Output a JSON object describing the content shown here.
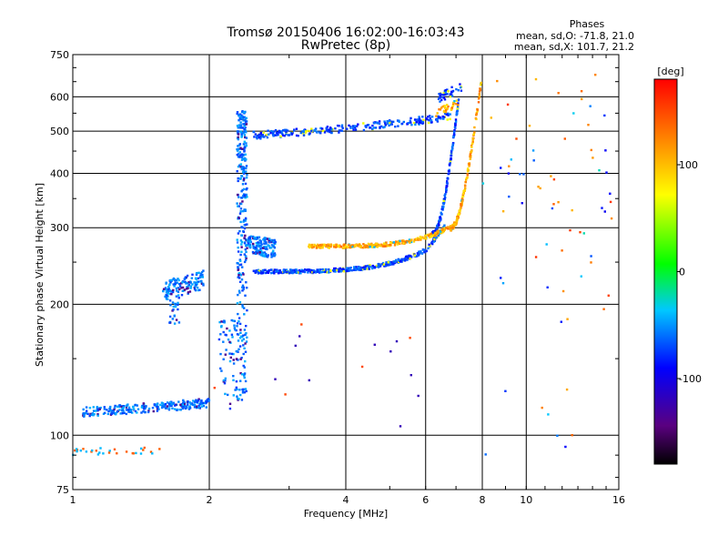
{
  "chart_data": {
    "type": "scatter",
    "title": "Tromsø 20150406 16:02:00-16:03:43",
    "subtitle": "RwPretec (8p)",
    "xlabel": "Frequency [MHz]",
    "ylabel": "Stationary phase Virtual Height [km]",
    "xscale": "log",
    "yscale": "log",
    "xlim": [
      1,
      16
    ],
    "ylim": [
      75,
      750
    ],
    "x_ticks": [
      "1",
      "2",
      "4",
      "6",
      "8",
      "10",
      "16"
    ],
    "y_ticks": [
      "75",
      "100",
      "200",
      "300",
      "400",
      "500",
      "600",
      "750"
    ],
    "grid": true,
    "info": {
      "title": "Phases",
      "line1": "mean, sd,O: -71.8, 21.0",
      "line2": "mean, sd,X: 101.7, 21.2"
    },
    "colorbar": {
      "label": "[deg]",
      "range": [
        -180,
        180
      ],
      "ticks": [
        "100",
        "0",
        "-100"
      ],
      "tick_values": [
        100,
        0,
        -100
      ]
    },
    "colors": {
      "grid": "#000000",
      "o_mode": "#1e3cff",
      "x_mode": "#f0c800"
    }
  }
}
